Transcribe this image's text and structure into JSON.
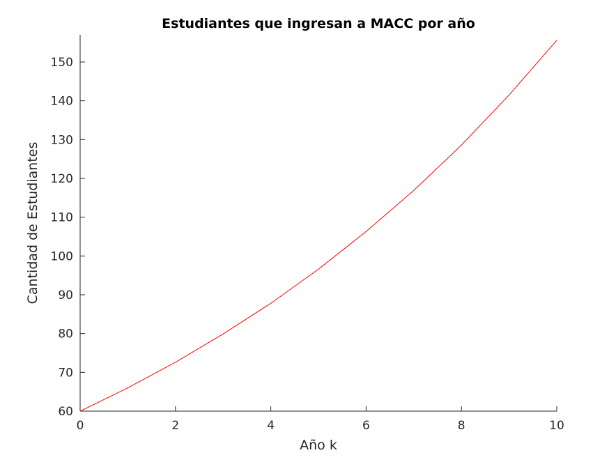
{
  "chart_data": {
    "type": "line",
    "title": "Estudiantes que ingresan a MACC por año",
    "xlabel": "Año k",
    "ylabel": "Cantidad de Estudiantes",
    "xlim": [
      0,
      10
    ],
    "ylim": [
      60,
      157
    ],
    "xticks": [
      0,
      2,
      4,
      6,
      8,
      10
    ],
    "yticks": [
      60,
      70,
      80,
      90,
      100,
      110,
      120,
      130,
      140,
      150
    ],
    "grid": false,
    "series": [
      {
        "color": "#ff0000",
        "x": [
          0,
          1,
          2,
          3,
          4,
          5,
          6,
          7,
          8,
          9,
          10
        ],
        "y": [
          60,
          66,
          72.6,
          79.9,
          87.8,
          96.6,
          106.3,
          116.9,
          128.6,
          141.5,
          155.6
        ]
      }
    ]
  }
}
